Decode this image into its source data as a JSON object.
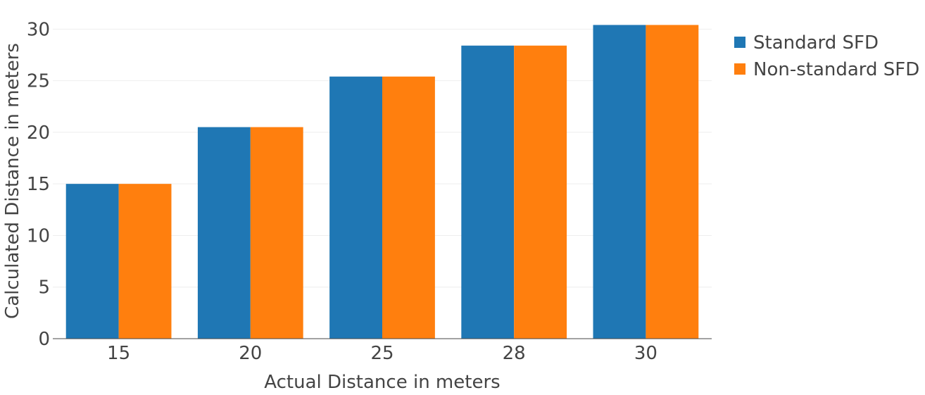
{
  "chart_data": {
    "type": "bar",
    "title": "",
    "xlabel": "Actual Distance in meters",
    "ylabel": "Calculated Distance in meters",
    "categories": [
      "15",
      "20",
      "25",
      "28",
      "30"
    ],
    "series": [
      {
        "name": "Standard SFD",
        "color": "#1f77b4",
        "values": [
          15,
          20.5,
          25.4,
          28.4,
          30.4
        ]
      },
      {
        "name": "Non-standard SFD",
        "color": "#ff7f0e",
        "values": [
          15,
          20.5,
          25.4,
          28.4,
          30.4
        ]
      }
    ],
    "ylim": [
      0,
      32
    ],
    "yticks": [
      0,
      5,
      10,
      15,
      20,
      25,
      30
    ],
    "grid": true,
    "legend": "top-right"
  }
}
